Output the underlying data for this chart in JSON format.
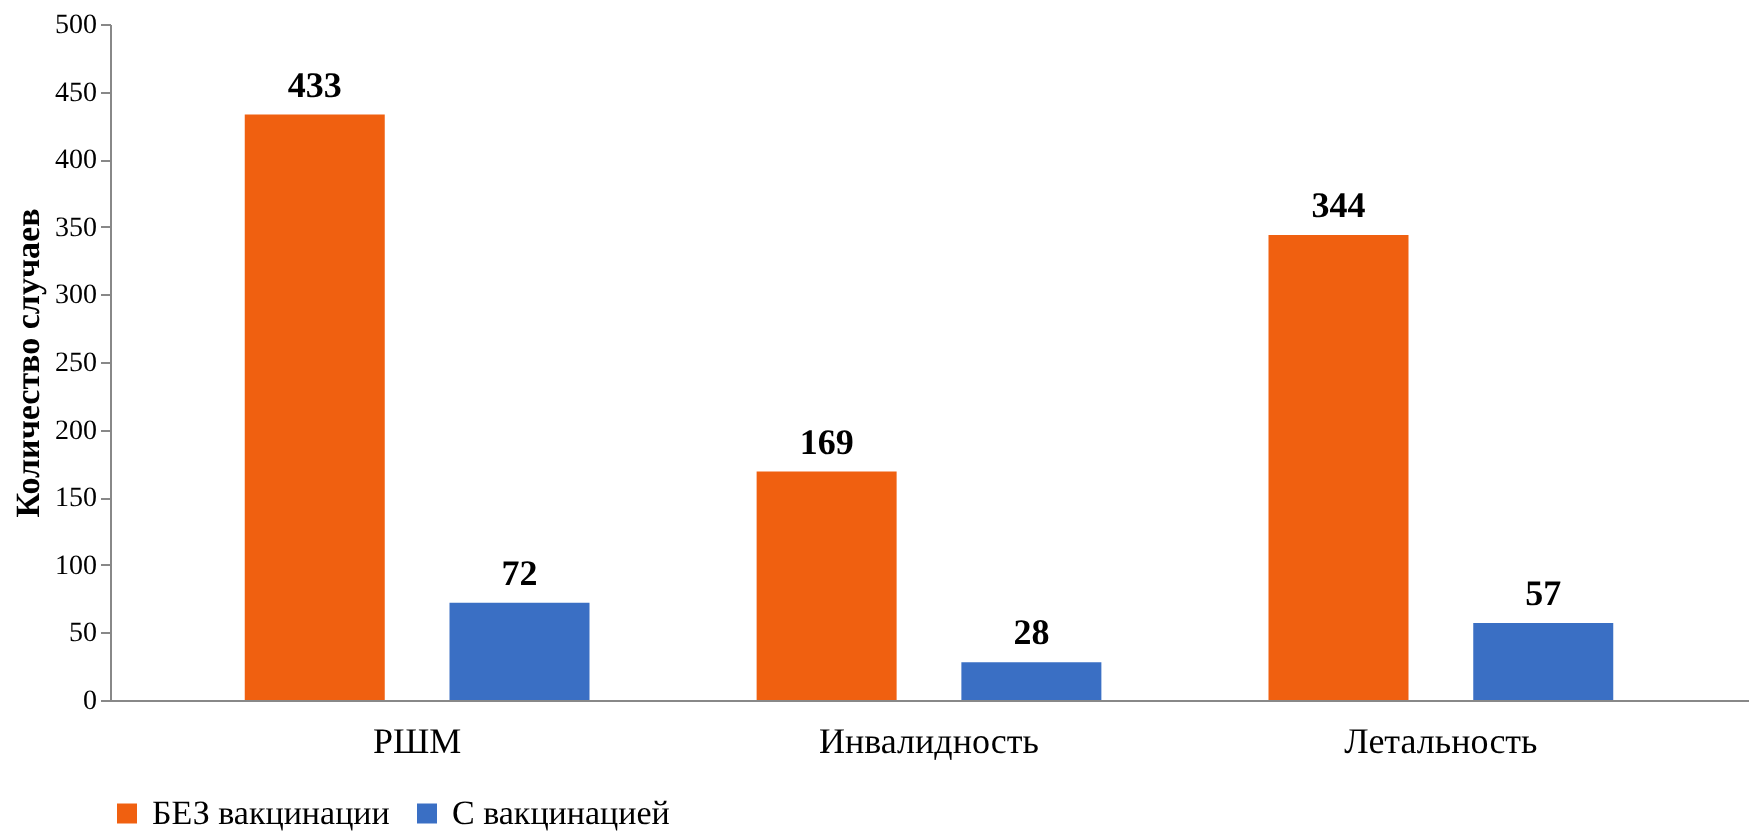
{
  "chart_data": {
    "type": "bar",
    "ylabel": "Количество случаев",
    "categories": [
      "РШМ",
      "Инвалидность",
      "Летальность"
    ],
    "series": [
      {
        "name": "БЕЗ вакцинации",
        "color": "#f06010",
        "values": [
          433,
          169,
          344
        ]
      },
      {
        "name": "С вакцинацией",
        "color": "#3a6fc4",
        "values": [
          72,
          28,
          57
        ]
      }
    ],
    "ylim": [
      0,
      500
    ],
    "yticks": [
      0,
      50,
      100,
      150,
      200,
      250,
      300,
      350,
      400,
      450,
      500
    ],
    "grid": false,
    "legend": "bottom",
    "data_labels": true
  }
}
